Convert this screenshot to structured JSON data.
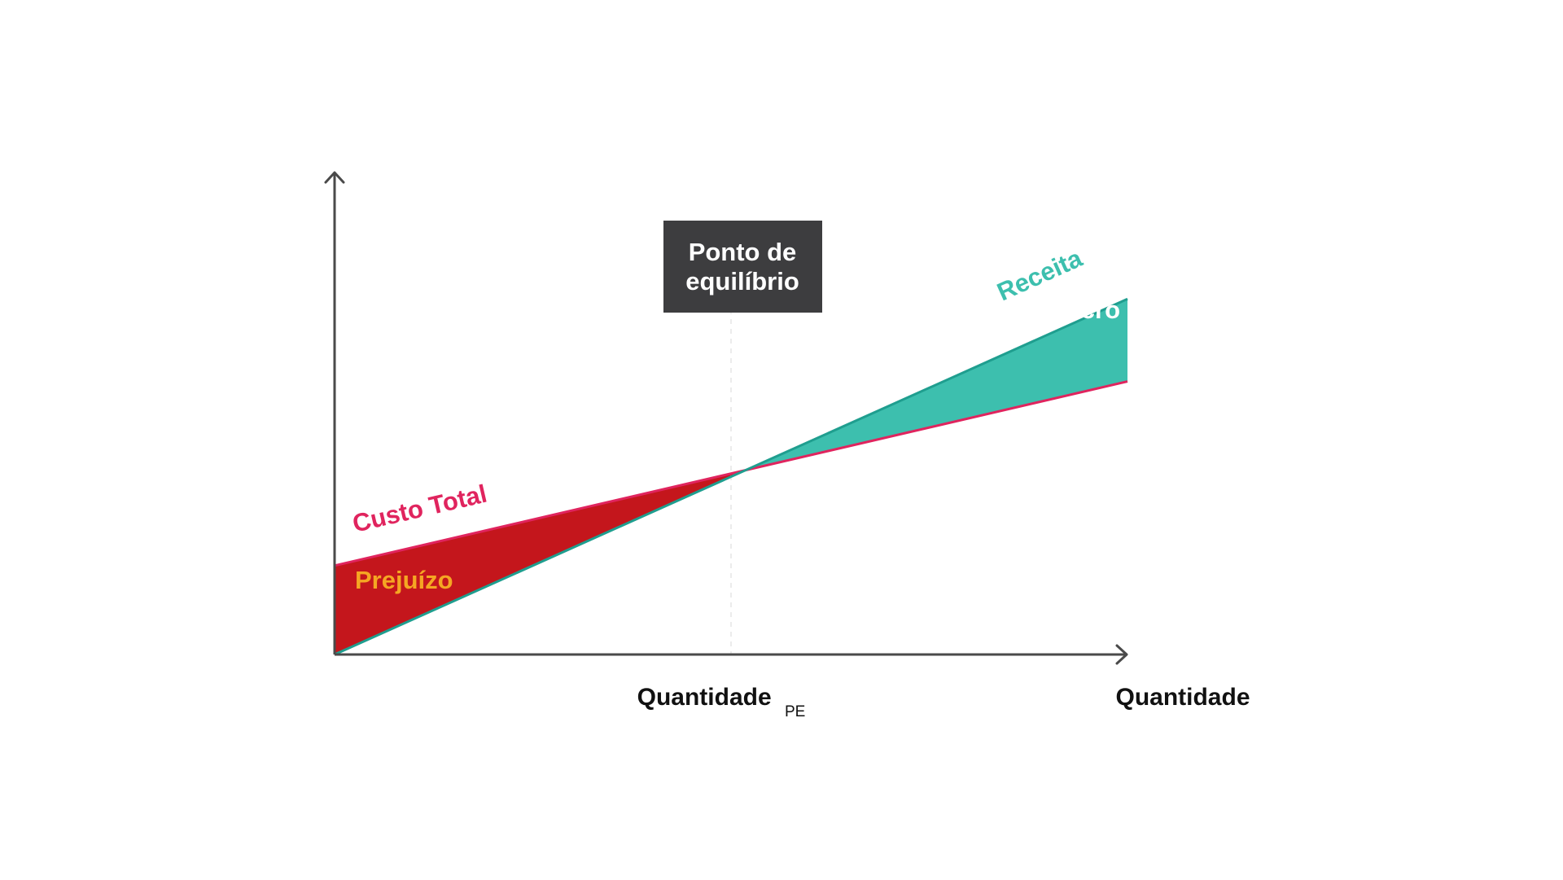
{
  "chart_data": {
    "type": "line",
    "title": "",
    "xlabel": "Quantidade",
    "ylabel": "",
    "x_ticks": [
      {
        "x": 50,
        "label": "Quantidade",
        "sub": "PE"
      }
    ],
    "xlim": [
      0,
      100
    ],
    "ylim": [
      0,
      100
    ],
    "grid": false,
    "series": [
      {
        "name": "Custo Total",
        "x": [
          0,
          100
        ],
        "y": [
          21,
          64.5
        ],
        "color": "#e0245e"
      },
      {
        "name": "Receita",
        "x": [
          0,
          100
        ],
        "y": [
          0,
          84
        ],
        "color": "#1f9e8f"
      }
    ],
    "regions": [
      {
        "label": "Prejuízo",
        "fill": "#c4161c",
        "label_color": "#f5a623"
      },
      {
        "label": "Lucro",
        "fill": "#3dbfae",
        "label_color": "#ffffff"
      }
    ],
    "annotation": {
      "line1": "Ponto de",
      "line2": "equilíbrio",
      "box_color": "#3d3d3f",
      "text_color": "#ffffff"
    },
    "axis_color": "#4a4a4a"
  }
}
